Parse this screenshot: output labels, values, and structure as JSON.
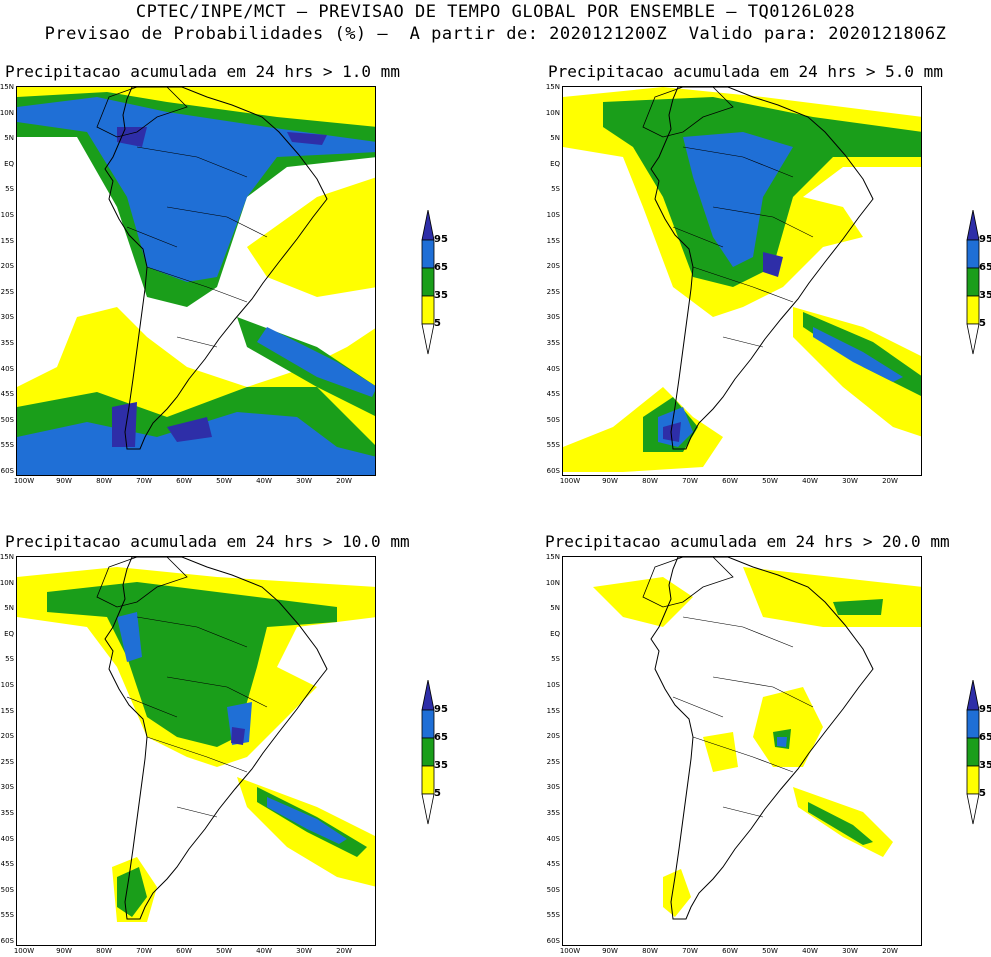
{
  "header": {
    "title_line1": "CPTEC/INPE/MCT – PREVISAO DE TEMPO GLOBAL POR ENSEMBLE – TQ0126L028",
    "title_line2": "Previsao de Probabilidades (%) –  A partir de: 2020121200Z  Valido para: 2020121806Z"
  },
  "panels": [
    {
      "title": "Precipitacao acumulada em 24 hrs > 1.0 mm"
    },
    {
      "title": "Precipitacao acumulada em 24 hrs > 5.0 mm"
    },
    {
      "title": "Precipitacao acumulada em 24 hrs > 10.0 mm"
    },
    {
      "title": "Precipitacao acumulada em 24 hrs > 20.0 mm"
    }
  ],
  "lat_labels": [
    "15N",
    "10N",
    "5N",
    "EQ",
    "5S",
    "10S",
    "15S",
    "20S",
    "25S",
    "30S",
    "35S",
    "40S",
    "45S",
    "50S",
    "55S",
    "60S"
  ],
  "lon_labels": [
    "100W",
    "90W",
    "80W",
    "70W",
    "60W",
    "50W",
    "40W",
    "30W",
    "20W"
  ],
  "colorbar": {
    "levels": [
      "95",
      "65",
      "35",
      "5"
    ],
    "colors": {
      "yellow": "#ffff00",
      "green": "#1a9e1a",
      "blue": "#1f6fd6",
      "navy": "#2e2ea8"
    }
  }
}
